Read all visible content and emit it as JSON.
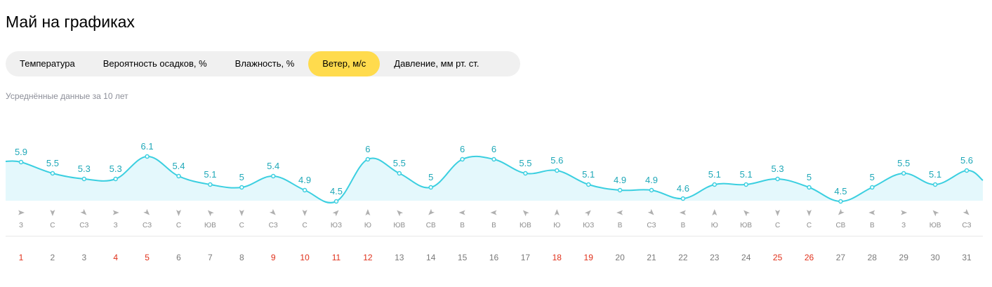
{
  "page": {
    "title": "Май на графиках",
    "subtitle": "Усреднённые данные за 10 лет"
  },
  "tabs": [
    {
      "label": "Температура",
      "active": false
    },
    {
      "label": "Вероятность осадков, %",
      "active": false
    },
    {
      "label": "Влажность, %",
      "active": false
    },
    {
      "label": "Ветер, м/с",
      "active": true
    },
    {
      "label": "Давление, мм рт. ст.",
      "active": false
    }
  ],
  "colors": {
    "line": "#3bcfe0",
    "area": "#e4f8fc",
    "label": "#1fa8b8",
    "active_tab": "#ffdb4d",
    "weekend_day": "#e0311b",
    "day": "#7a7a7a",
    "direction": "#8d8d8d",
    "arrow": "#b0b0b0"
  },
  "chart_data": {
    "type": "area",
    "x": [
      1,
      2,
      3,
      4,
      5,
      6,
      7,
      8,
      9,
      10,
      11,
      12,
      13,
      14,
      15,
      16,
      17,
      18,
      19,
      20,
      21,
      22,
      23,
      24,
      25,
      26,
      27,
      28,
      29,
      30,
      31
    ],
    "values": [
      5.9,
      5.5,
      5.3,
      5.3,
      6.1,
      5.4,
      5.1,
      5,
      5.4,
      4.9,
      4.5,
      6,
      5.5,
      5,
      6,
      6,
      5.5,
      5.6,
      5.1,
      4.9,
      4.9,
      4.6,
      5.1,
      5.1,
      5.3,
      5,
      4.5,
      5,
      5.5,
      5.1,
      5.6
    ],
    "labels": [
      "5.9",
      "5.5",
      "5.3",
      "5.3",
      "6.1",
      "5.4",
      "5.1",
      "5",
      "5.4",
      "4.9",
      "4.5",
      "6",
      "5.5",
      "5",
      "6",
      "6",
      "5.5",
      "5.6",
      "5.1",
      "4.9",
      "4.9",
      "4.6",
      "5.1",
      "5.1",
      "5.3",
      "5",
      "4.5",
      "5",
      "5.5",
      "5.1",
      "5.6"
    ],
    "directions": [
      "З",
      "С",
      "СЗ",
      "З",
      "СЗ",
      "С",
      "ЮВ",
      "С",
      "СЗ",
      "С",
      "ЮЗ",
      "Ю",
      "ЮВ",
      "СВ",
      "В",
      "В",
      "ЮВ",
      "Ю",
      "ЮЗ",
      "В",
      "СЗ",
      "В",
      "Ю",
      "ЮВ",
      "С",
      "С",
      "СВ",
      "В",
      "З",
      "ЮВ",
      "СЗ"
    ],
    "days": [
      "1",
      "2",
      "3",
      "4",
      "5",
      "6",
      "7",
      "8",
      "9",
      "10",
      "11",
      "12",
      "13",
      "14",
      "15",
      "16",
      "17",
      "18",
      "19",
      "20",
      "21",
      "22",
      "23",
      "24",
      "25",
      "26",
      "27",
      "28",
      "29",
      "30",
      "31"
    ],
    "weekend_days": [
      1,
      4,
      5,
      9,
      10,
      11,
      12,
      18,
      19,
      25,
      26
    ],
    "unit": "м/с"
  }
}
